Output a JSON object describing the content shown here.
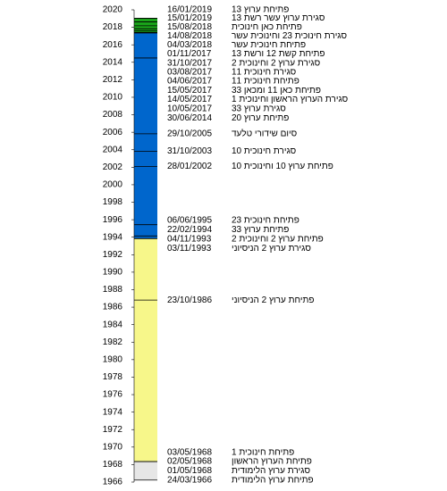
{
  "chart_data": {
    "type": "timeline",
    "ylim": [
      1966,
      2020
    ],
    "yticks": [
      1966,
      1968,
      1970,
      1972,
      1974,
      1976,
      1978,
      1980,
      1982,
      1984,
      1986,
      1988,
      1990,
      1992,
      1994,
      1996,
      1998,
      2000,
      2002,
      2004,
      2006,
      2008,
      2010,
      2012,
      2014,
      2016,
      2018,
      2020
    ],
    "periods": [
      {
        "start": 1966.23,
        "end": 1968.33,
        "color": "#e6e6e6"
      },
      {
        "start": 1968.33,
        "end": 1993.84,
        "color": "#f7f78a"
      },
      {
        "start": 1993.84,
        "end": 2017.37,
        "color": "#0066cc"
      },
      {
        "start": 2017.37,
        "end": 2019.04,
        "color": "#1aa31a"
      }
    ],
    "events": [
      {
        "date": "16/01/2019",
        "label": "פתיחת ערוץ 13"
      },
      {
        "date": "15/01/2019",
        "label": "סגירת ערוץ עשר רשת 13"
      },
      {
        "date": "15/08/2018",
        "label": "פתיחת כאן חינוכית"
      },
      {
        "date": "14/08/2018",
        "label": "סגירת חינוכית 23 וחינוכית עשר"
      },
      {
        "date": "04/03/2018",
        "label": "פתיחת חינוכית עשר"
      },
      {
        "date": "01/11/2017",
        "label": "פתיחת קשת 12 ורשת 13"
      },
      {
        "date": "31/10/2017",
        "label": "סגירת ערוץ 2 וחינוכית 2"
      },
      {
        "date": "03/08/2017",
        "label": "סגירת חינוכית 11"
      },
      {
        "date": "04/06/2017",
        "label": "פתיחת חינוכית 11"
      },
      {
        "date": "15/05/2017",
        "label": "פתיחת כאן 11 ומכאן 33"
      },
      {
        "date": "14/05/2017",
        "label": "סגירת הערוץ הראשון וחינוכית 1"
      },
      {
        "date": "10/05/2017",
        "label": "סגירת ערוץ 33"
      },
      {
        "date": "30/06/2014",
        "label": "פתיחת ערוץ 20"
      },
      {
        "date": "29/10/2005",
        "label": "סיום שידורי טלעד"
      },
      {
        "date": "31/10/2003",
        "label": "סגירת חינוכית 10"
      },
      {
        "date": "28/01/2002",
        "label": "פתיחת ערוץ 10 וחינוכית 10"
      },
      {
        "date": "06/06/1995",
        "label": "פתיחת חינוכית 23"
      },
      {
        "date": "22/02/1994",
        "label": "פתיחת ערוץ 33"
      },
      {
        "date": "04/11/1993",
        "label": "פתיחת ערוץ 2 וחינוכית 2"
      },
      {
        "date": "03/11/1993",
        "label": "סגירת ערוץ 2 הניסיוני"
      },
      {
        "date": "23/10/1986",
        "label": "פתיחת ערוץ 2 הניסיוני"
      },
      {
        "date": "03/05/1968",
        "label": "פתיחת חינוכית 1"
      },
      {
        "date": "02/05/1968",
        "label": "פתיחת הערוץ הראשון"
      },
      {
        "date": "01/05/1968",
        "label": "סגירת ערוץ הלימודית"
      },
      {
        "date": "24/03/1966",
        "label": "פתיחת ערוץ הלימודית"
      }
    ]
  }
}
